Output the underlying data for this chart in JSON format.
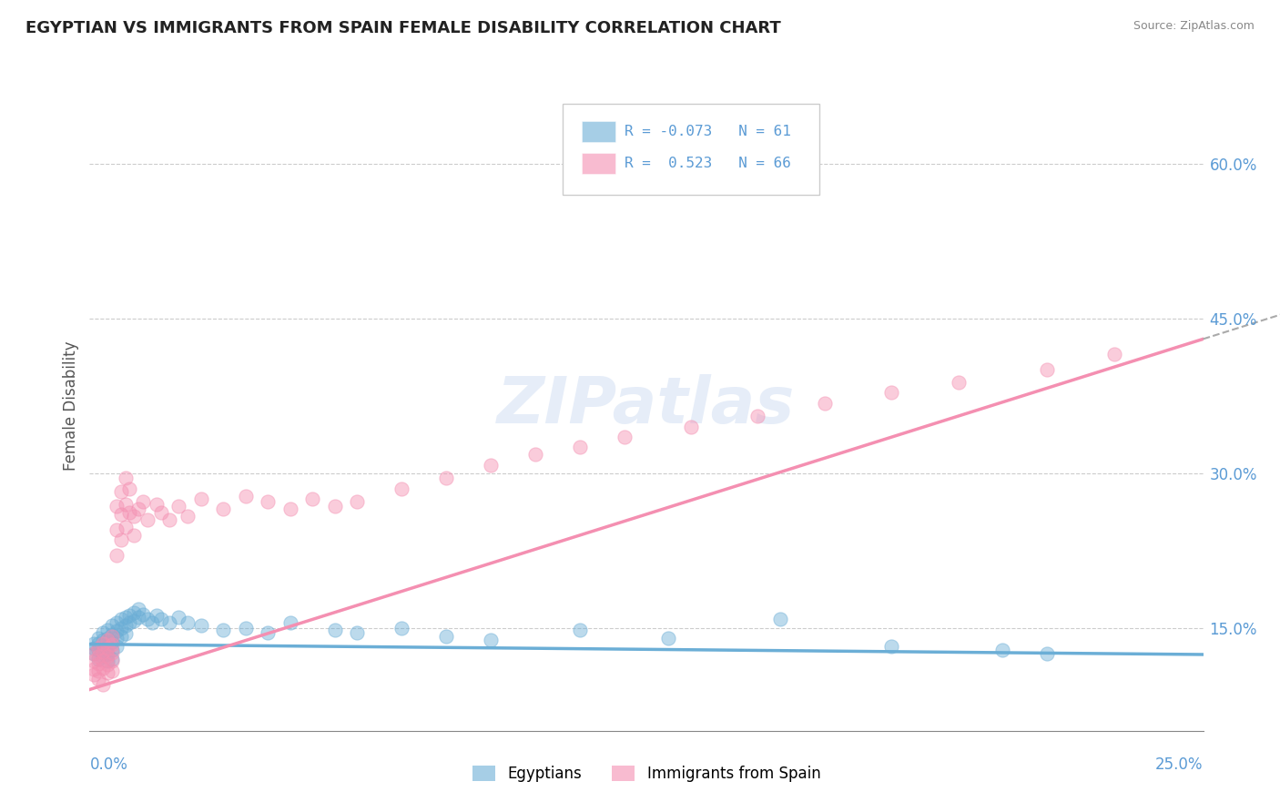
{
  "title": "EGYPTIAN VS IMMIGRANTS FROM SPAIN FEMALE DISABILITY CORRELATION CHART",
  "source": "Source: ZipAtlas.com",
  "ylabel": "Female Disability",
  "right_yticks": [
    "60.0%",
    "45.0%",
    "30.0%",
    "15.0%"
  ],
  "right_ytick_vals": [
    0.6,
    0.45,
    0.3,
    0.15
  ],
  "egyptians_color": "#6baed6",
  "spain_color": "#f48fb1",
  "watermark": "ZIPatlas",
  "xlim": [
    0.0,
    0.25
  ],
  "ylim": [
    0.05,
    0.68
  ],
  "r_egypt": -0.073,
  "r_spain": 0.523,
  "n_egypt": 61,
  "n_spain": 66,
  "egyptians_x": [
    0.001,
    0.001,
    0.001,
    0.002,
    0.002,
    0.002,
    0.002,
    0.003,
    0.003,
    0.003,
    0.003,
    0.004,
    0.004,
    0.004,
    0.004,
    0.004,
    0.005,
    0.005,
    0.005,
    0.005,
    0.005,
    0.006,
    0.006,
    0.006,
    0.006,
    0.007,
    0.007,
    0.007,
    0.008,
    0.008,
    0.008,
    0.009,
    0.009,
    0.01,
    0.01,
    0.011,
    0.011,
    0.012,
    0.013,
    0.014,
    0.015,
    0.016,
    0.018,
    0.02,
    0.022,
    0.025,
    0.03,
    0.035,
    0.04,
    0.045,
    0.055,
    0.06,
    0.07,
    0.08,
    0.09,
    0.11,
    0.13,
    0.155,
    0.18,
    0.205,
    0.215
  ],
  "egyptians_y": [
    0.135,
    0.13,
    0.125,
    0.14,
    0.135,
    0.128,
    0.12,
    0.145,
    0.138,
    0.13,
    0.122,
    0.148,
    0.14,
    0.132,
    0.125,
    0.118,
    0.152,
    0.143,
    0.136,
    0.128,
    0.12,
    0.155,
    0.147,
    0.14,
    0.132,
    0.158,
    0.15,
    0.142,
    0.16,
    0.152,
    0.144,
    0.162,
    0.155,
    0.165,
    0.157,
    0.168,
    0.16,
    0.163,
    0.158,
    0.155,
    0.162,
    0.158,
    0.155,
    0.16,
    0.155,
    0.152,
    0.148,
    0.15,
    0.145,
    0.155,
    0.148,
    0.145,
    0.15,
    0.142,
    0.138,
    0.148,
    0.14,
    0.158,
    0.132,
    0.128,
    0.125
  ],
  "spain_x": [
    0.001,
    0.001,
    0.001,
    0.001,
    0.002,
    0.002,
    0.002,
    0.002,
    0.002,
    0.003,
    0.003,
    0.003,
    0.003,
    0.003,
    0.004,
    0.004,
    0.004,
    0.004,
    0.004,
    0.005,
    0.005,
    0.005,
    0.005,
    0.005,
    0.006,
    0.006,
    0.006,
    0.007,
    0.007,
    0.007,
    0.008,
    0.008,
    0.008,
    0.009,
    0.009,
    0.01,
    0.01,
    0.011,
    0.012,
    0.013,
    0.015,
    0.016,
    0.018,
    0.02,
    0.022,
    0.025,
    0.03,
    0.035,
    0.04,
    0.045,
    0.05,
    0.055,
    0.06,
    0.07,
    0.08,
    0.09,
    0.1,
    0.11,
    0.12,
    0.135,
    0.15,
    0.165,
    0.18,
    0.195,
    0.215,
    0.23
  ],
  "spain_y": [
    0.125,
    0.118,
    0.11,
    0.105,
    0.13,
    0.122,
    0.115,
    0.108,
    0.1,
    0.135,
    0.127,
    0.119,
    0.111,
    0.095,
    0.138,
    0.13,
    0.122,
    0.114,
    0.106,
    0.142,
    0.134,
    0.126,
    0.118,
    0.108,
    0.268,
    0.245,
    0.22,
    0.282,
    0.26,
    0.235,
    0.295,
    0.27,
    0.248,
    0.285,
    0.262,
    0.258,
    0.24,
    0.265,
    0.272,
    0.255,
    0.27,
    0.262,
    0.255,
    0.268,
    0.258,
    0.275,
    0.265,
    0.278,
    0.272,
    0.265,
    0.275,
    0.268,
    0.272,
    0.285,
    0.295,
    0.308,
    0.318,
    0.325,
    0.335,
    0.345,
    0.355,
    0.368,
    0.378,
    0.388,
    0.4,
    0.415
  ]
}
